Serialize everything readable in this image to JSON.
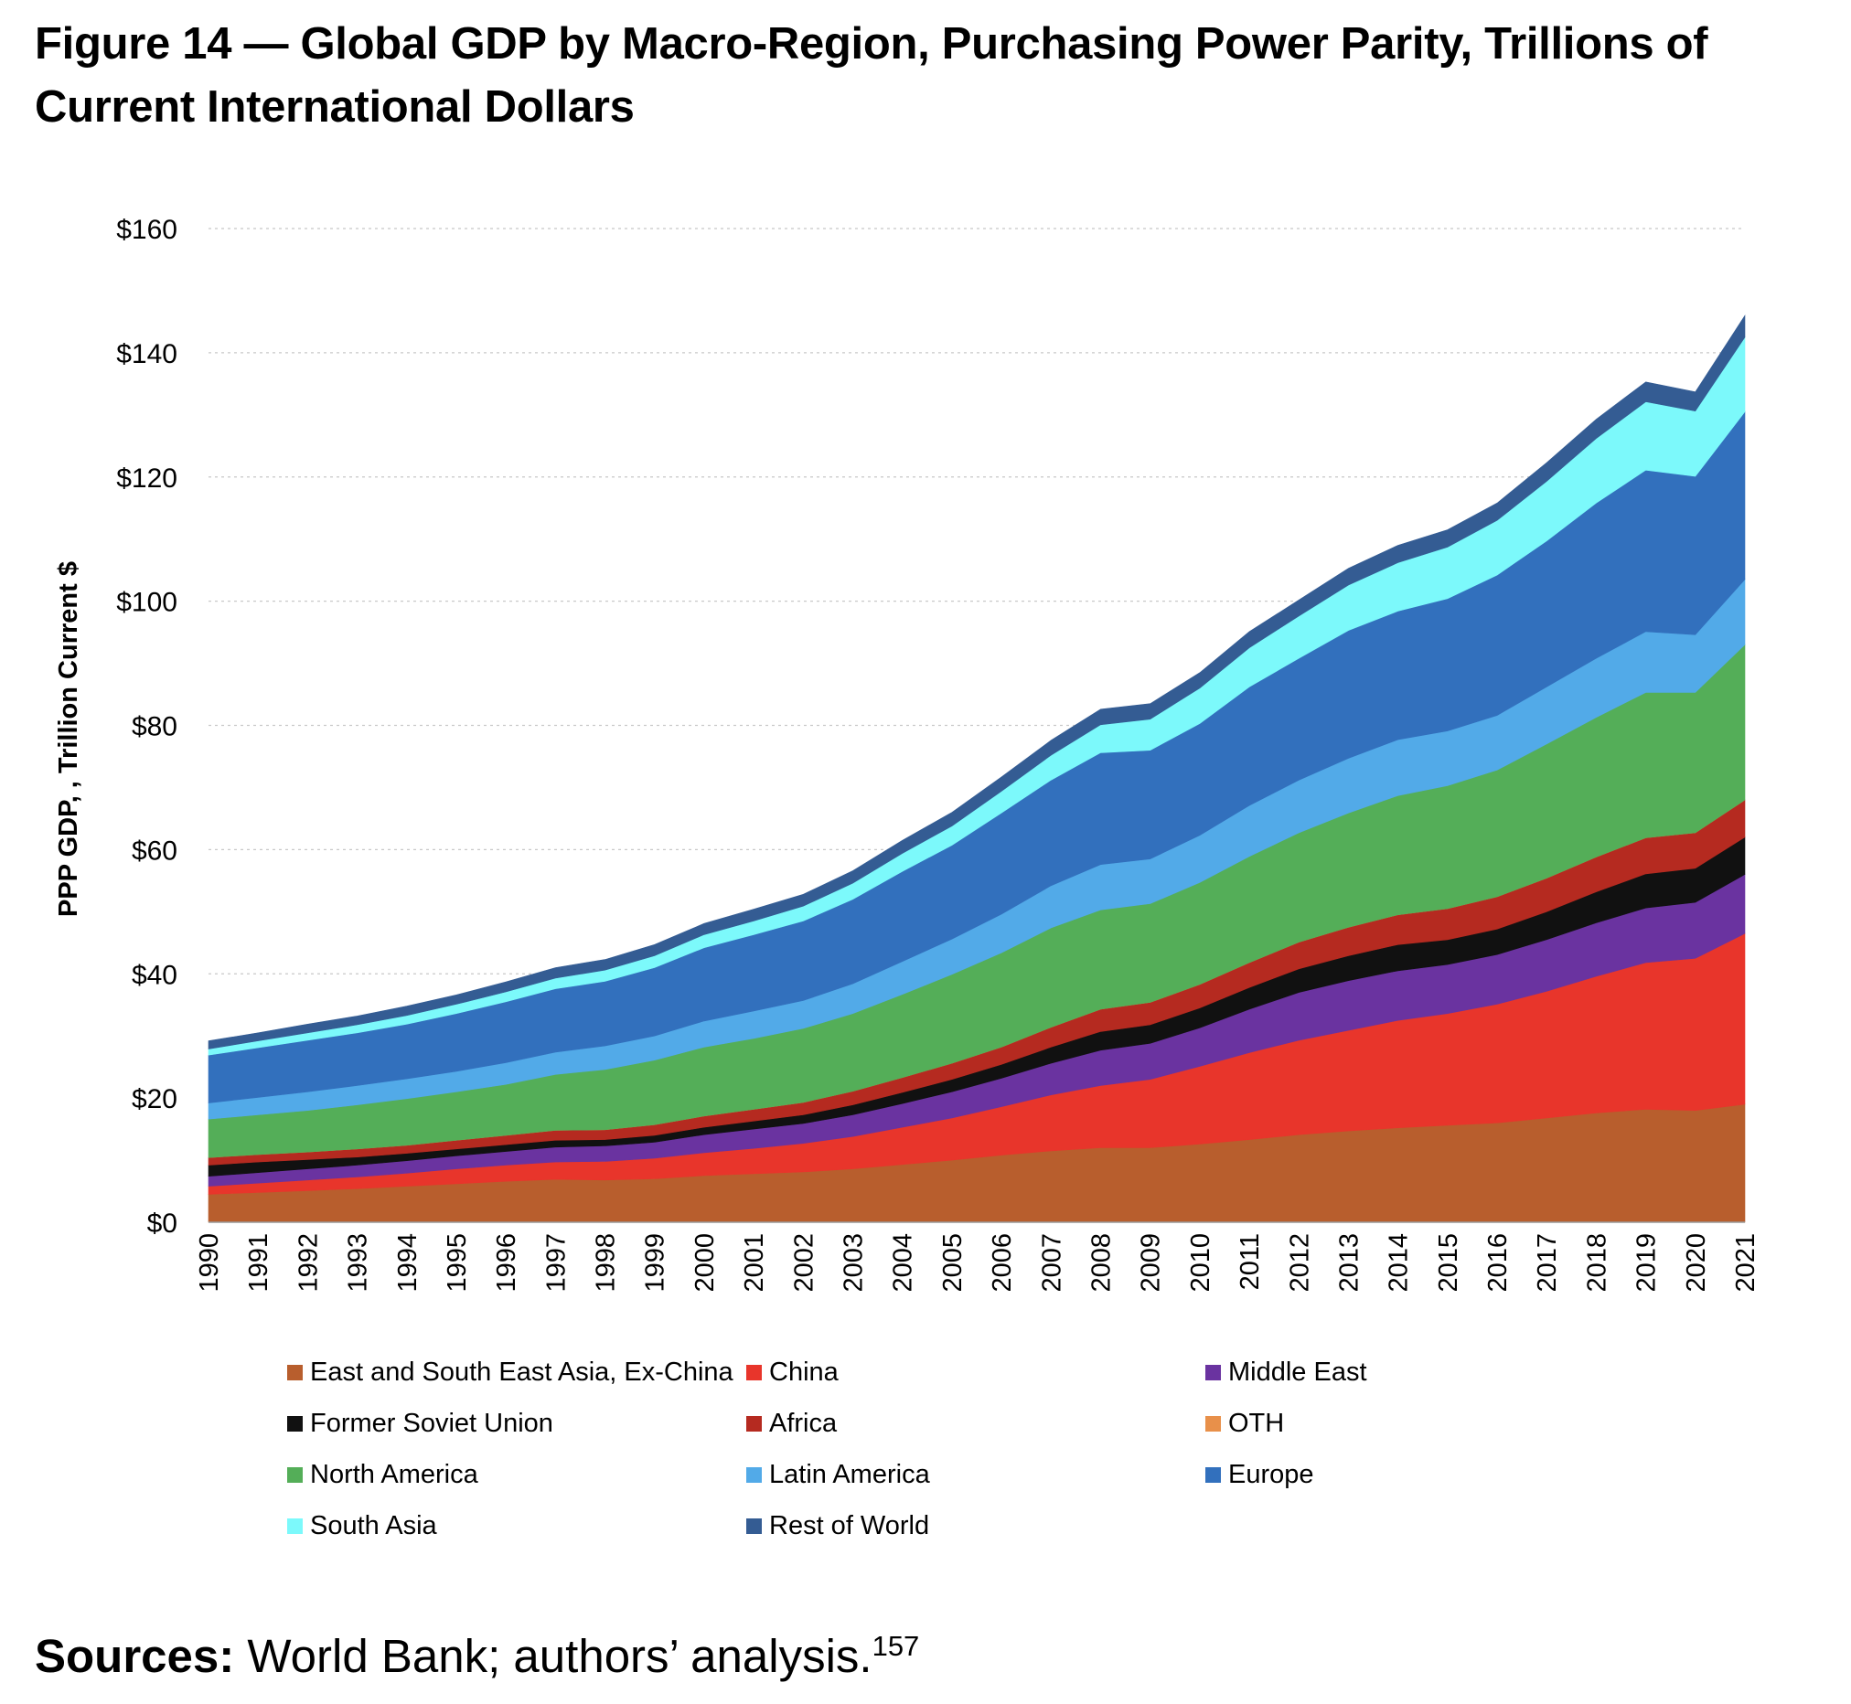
{
  "figure": {
    "title": "Figure 14 — Global GDP by Macro-Region, Purchasing Power Parity, Trillions of Current International Dollars"
  },
  "sources": {
    "label": "Sources:",
    "text": "World Bank; authors’ analysis.",
    "footnote": "157"
  },
  "chart_data": {
    "type": "area",
    "stacked": true,
    "ylabel": "PPP GDP, , Trillion Current $",
    "xlabel": "",
    "ylim": [
      0,
      160
    ],
    "y_ticks": [
      0,
      20,
      40,
      60,
      80,
      100,
      120,
      140,
      160
    ],
    "y_tick_labels": [
      "$0",
      "$20",
      "$40",
      "$60",
      "$80",
      "$100",
      "$120",
      "$140",
      "$160"
    ],
    "grid": "horizontal-dotted",
    "legend_position": "bottom",
    "x": [
      "1990",
      "1991",
      "1992",
      "1993",
      "1994",
      "1995",
      "1996",
      "1997",
      "1998",
      "1999",
      "2000",
      "2001",
      "2002",
      "2003",
      "2004",
      "2005",
      "2006",
      "2007",
      "2008",
      "2009",
      "2010",
      "2011",
      "2012",
      "2013",
      "2014",
      "2015",
      "2016",
      "2017",
      "2018",
      "2019",
      "2020",
      "2021"
    ],
    "series": [
      {
        "name": "East and South East Asia, Ex-China",
        "color": "#b85e2d",
        "values": [
          4.5,
          4.8,
          5.1,
          5.4,
          5.8,
          6.2,
          6.6,
          6.9,
          6.8,
          7.0,
          7.5,
          7.8,
          8.1,
          8.6,
          9.3,
          10.0,
          10.8,
          11.5,
          12.0,
          12.0,
          12.6,
          13.3,
          14.1,
          14.7,
          15.2,
          15.6,
          16.0,
          16.8,
          17.6,
          18.2,
          18.0,
          19.0
        ]
      },
      {
        "name": "China",
        "color": "#e8352b",
        "values": [
          1.3,
          1.5,
          1.7,
          1.9,
          2.1,
          2.4,
          2.6,
          2.8,
          3.0,
          3.3,
          3.7,
          4.1,
          4.6,
          5.2,
          6.0,
          6.8,
          7.8,
          9.0,
          10.0,
          11.0,
          12.5,
          14.0,
          15.2,
          16.2,
          17.3,
          18.0,
          19.1,
          20.4,
          22.0,
          23.6,
          24.5,
          27.5
        ]
      },
      {
        "name": "Middle East",
        "color": "#6a33a0",
        "values": [
          1.6,
          1.7,
          1.8,
          1.9,
          2.0,
          2.1,
          2.2,
          2.4,
          2.5,
          2.6,
          2.9,
          3.1,
          3.2,
          3.5,
          3.8,
          4.2,
          4.6,
          5.1,
          5.7,
          5.8,
          6.2,
          7.0,
          7.7,
          8.0,
          8.0,
          7.9,
          8.0,
          8.3,
          8.6,
          8.8,
          9.0,
          9.5
        ]
      },
      {
        "name": "Former Soviet Union",
        "color": "#111111",
        "values": [
          1.8,
          1.7,
          1.5,
          1.3,
          1.2,
          1.1,
          1.1,
          1.1,
          1.0,
          1.1,
          1.2,
          1.3,
          1.4,
          1.6,
          1.8,
          2.0,
          2.2,
          2.6,
          3.0,
          3.0,
          3.2,
          3.5,
          3.8,
          4.0,
          4.2,
          4.0,
          4.1,
          4.5,
          5.0,
          5.5,
          5.5,
          6.0
        ]
      },
      {
        "name": "Africa",
        "color": "#b52a20",
        "values": [
          1.2,
          1.2,
          1.2,
          1.3,
          1.3,
          1.4,
          1.5,
          1.6,
          1.6,
          1.7,
          1.8,
          1.9,
          2.0,
          2.2,
          2.4,
          2.6,
          2.8,
          3.2,
          3.6,
          3.6,
          3.8,
          4.0,
          4.3,
          4.6,
          4.8,
          5.0,
          5.2,
          5.4,
          5.6,
          5.8,
          5.7,
          6.0
        ]
      },
      {
        "name": "OTH",
        "color": "#e8904a",
        "values": [
          0.0,
          0.0,
          0.0,
          0.0,
          0.0,
          0.0,
          0.0,
          0.0,
          0.0,
          0.0,
          0.0,
          0.0,
          0.0,
          0.0,
          0.0,
          0.0,
          0.0,
          0.0,
          0.0,
          0.0,
          0.0,
          0.0,
          0.0,
          0.0,
          0.0,
          0.0,
          0.0,
          0.0,
          0.0,
          0.0,
          0.0,
          0.0
        ]
      },
      {
        "name": "North America",
        "color": "#54ae58",
        "values": [
          6.2,
          6.4,
          6.7,
          7.1,
          7.5,
          7.8,
          8.2,
          9.0,
          9.7,
          10.4,
          11.1,
          11.4,
          11.9,
          12.5,
          13.4,
          14.3,
          15.2,
          16.0,
          16.0,
          15.9,
          16.4,
          17.1,
          17.6,
          18.4,
          19.2,
          19.8,
          20.4,
          21.6,
          22.5,
          23.4,
          22.6,
          25.0
        ]
      },
      {
        "name": "Latin America",
        "color": "#52aae8",
        "values": [
          2.6,
          2.8,
          3.0,
          3.1,
          3.2,
          3.3,
          3.5,
          3.6,
          3.8,
          3.9,
          4.2,
          4.4,
          4.5,
          4.8,
          5.3,
          5.7,
          6.2,
          6.8,
          7.3,
          7.2,
          7.6,
          8.2,
          8.5,
          8.8,
          9.0,
          8.8,
          8.8,
          9.2,
          9.5,
          9.8,
          9.3,
          10.5
        ]
      },
      {
        "name": "Europe",
        "color": "#3270bd",
        "values": [
          7.7,
          8.0,
          8.3,
          8.5,
          8.8,
          9.3,
          9.8,
          10.2,
          10.4,
          11.0,
          11.8,
          12.3,
          12.8,
          13.6,
          14.5,
          15.1,
          16.3,
          17.0,
          18.0,
          17.5,
          18.0,
          19.1,
          19.6,
          20.6,
          20.7,
          21.3,
          22.6,
          23.5,
          25.0,
          26.0,
          25.5,
          27.0
        ]
      },
      {
        "name": "South Asia",
        "color": "#7cf9fb",
        "values": [
          1.0,
          1.1,
          1.2,
          1.3,
          1.4,
          1.5,
          1.6,
          1.7,
          1.8,
          1.9,
          2.1,
          2.2,
          2.4,
          2.6,
          2.9,
          3.1,
          3.5,
          4.0,
          4.5,
          5.0,
          5.7,
          6.3,
          6.8,
          7.3,
          7.8,
          8.3,
          8.8,
          9.6,
          10.4,
          11.0,
          10.5,
          12.0
        ]
      },
      {
        "name": "Rest of World",
        "color": "#345c93",
        "values": [
          1.3,
          1.3,
          1.4,
          1.4,
          1.5,
          1.5,
          1.6,
          1.7,
          1.7,
          1.8,
          1.8,
          1.9,
          1.9,
          2.0,
          2.1,
          2.2,
          2.3,
          2.4,
          2.5,
          2.5,
          2.5,
          2.6,
          2.6,
          2.7,
          2.8,
          2.8,
          2.8,
          3.0,
          3.1,
          3.2,
          3.1,
          3.5
        ]
      }
    ]
  }
}
